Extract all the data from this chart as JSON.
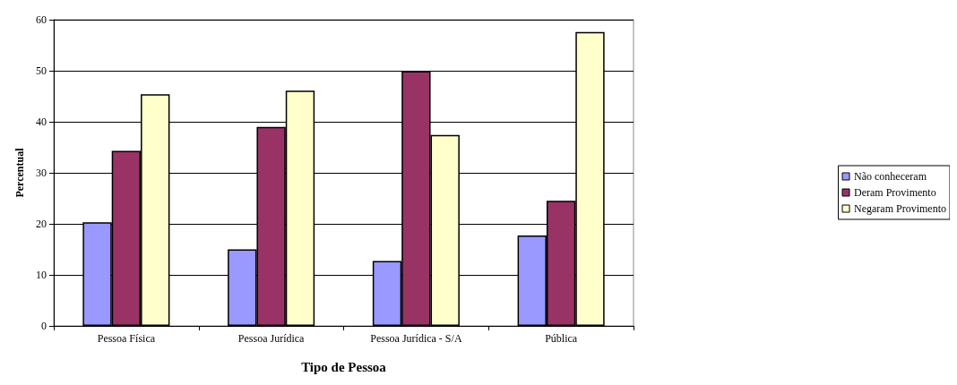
{
  "chart_data": {
    "type": "bar",
    "xlabel": "Tipo de Pessoa",
    "ylabel": "Percentual",
    "categories": [
      "Pessoa Física",
      "Pessoa Jurídica",
      "Pessoa Jurídica - S/A",
      "Pública"
    ],
    "series": [
      {
        "name": "Não conheceram",
        "color": "#9999ff",
        "values": [
          20.3,
          15.0,
          12.7,
          17.7
        ]
      },
      {
        "name": "Deram Provimento",
        "color": "#993366",
        "values": [
          34.3,
          39.0,
          49.9,
          24.5
        ]
      },
      {
        "name": "Negaram Provimento",
        "color": "#ffffcc",
        "values": [
          45.4,
          46.1,
          37.4,
          57.6
        ]
      }
    ],
    "ylim": [
      0,
      60
    ],
    "yticks": [
      0,
      10,
      20,
      30,
      40,
      50,
      60
    ],
    "grid": "y",
    "legend": "right"
  }
}
